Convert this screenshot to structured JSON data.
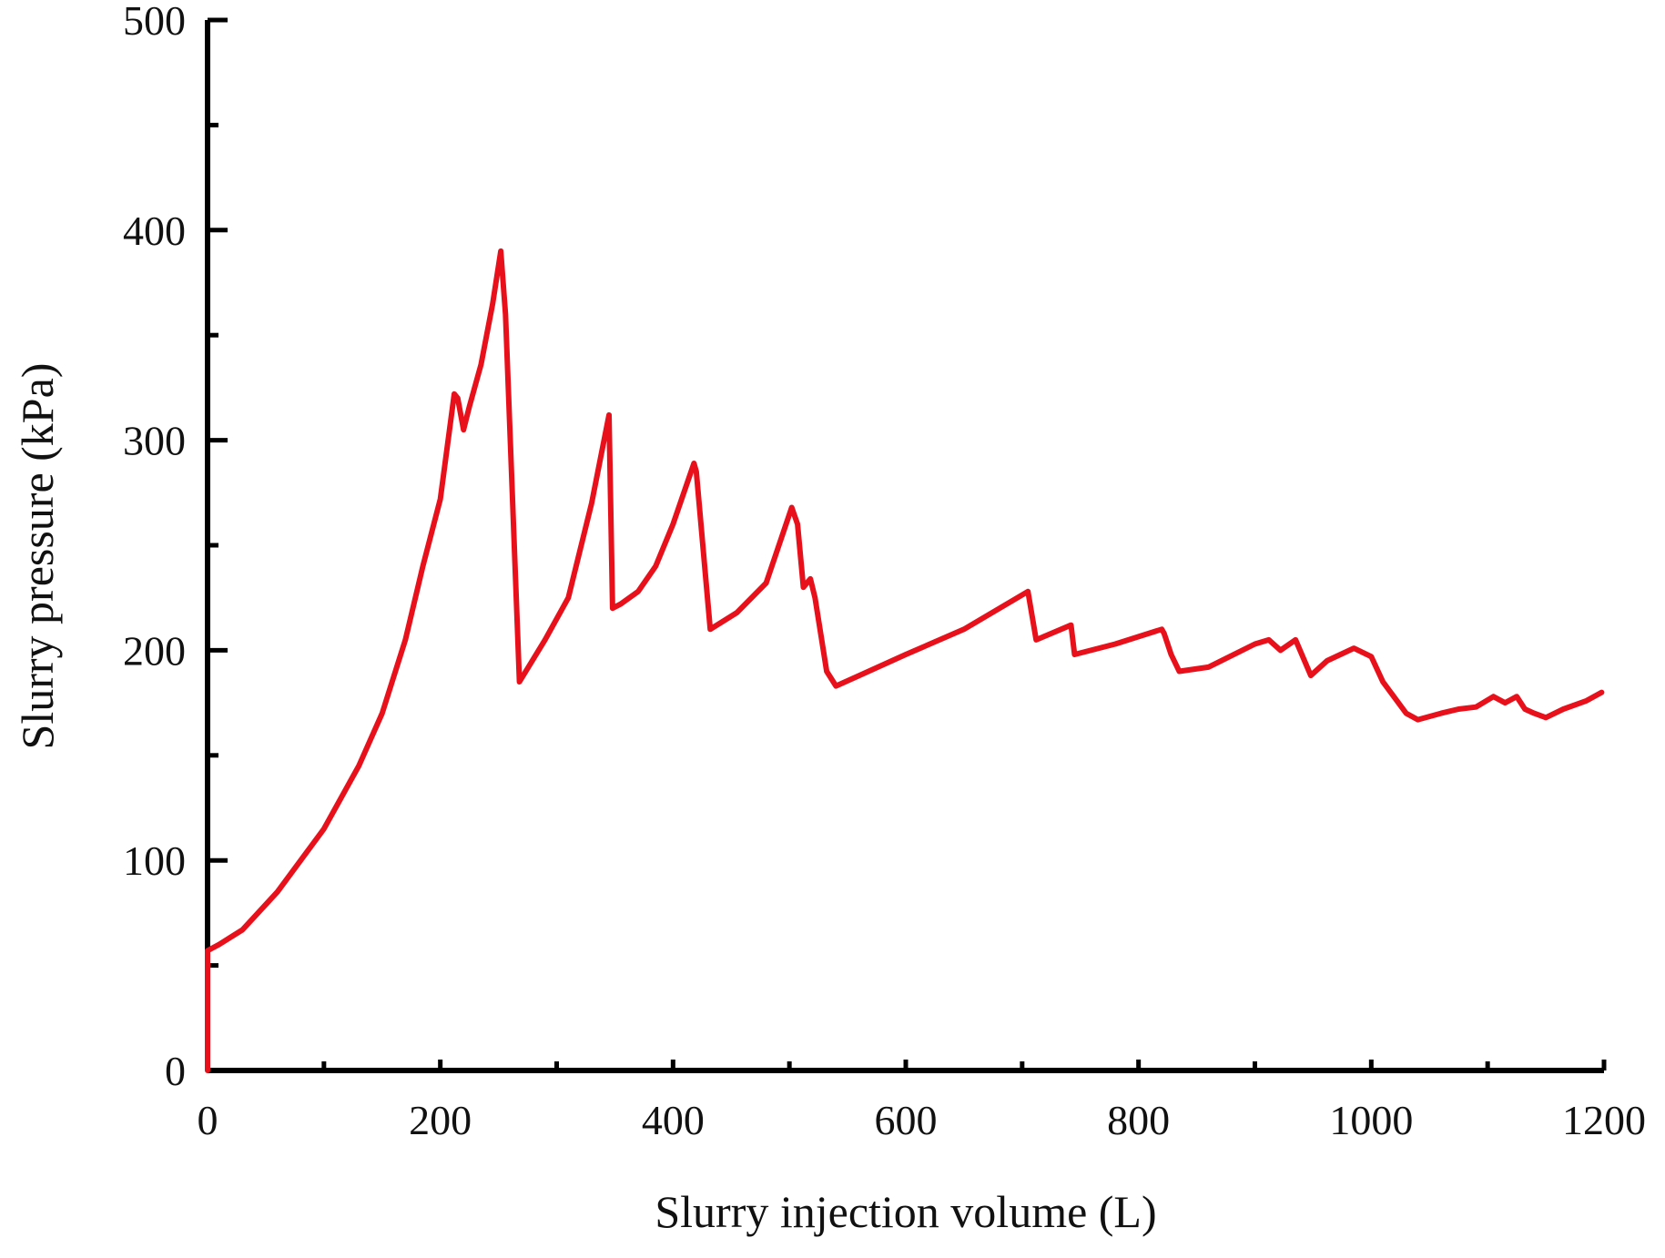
{
  "chart_data": {
    "type": "line",
    "title": "",
    "xlabel": "Slurry injection volume (L)",
    "ylabel": "Slurry pressure (kPa)",
    "xlim": [
      0,
      1200
    ],
    "ylim": [
      0,
      500
    ],
    "xticks": [
      0,
      200,
      400,
      600,
      800,
      1000,
      1200
    ],
    "yticks": [
      0,
      100,
      200,
      300,
      400,
      500
    ],
    "grid": false,
    "legend": "none",
    "series": [
      {
        "name": "Slurry pressure",
        "color": "#e8101a",
        "x": [
          0,
          0,
          10,
          30,
          60,
          100,
          130,
          150,
          170,
          185,
          200,
          212,
          215,
          220,
          225,
          235,
          245,
          252,
          256,
          268,
          290,
          310,
          330,
          345,
          348,
          355,
          370,
          385,
          400,
          418,
          420,
          432,
          455,
          480,
          502,
          507,
          512,
          518,
          522,
          532,
          540,
          560,
          600,
          650,
          705,
          712,
          742,
          745,
          780,
          820,
          822,
          828,
          835,
          860,
          900,
          912,
          922,
          935,
          948,
          962,
          985,
          1000,
          1010,
          1030,
          1040,
          1060,
          1075,
          1090,
          1105,
          1115,
          1125,
          1132,
          1140,
          1150,
          1165,
          1185,
          1198
        ],
        "y": [
          0,
          57,
          60,
          67,
          85,
          115,
          145,
          170,
          205,
          240,
          272,
          322,
          320,
          305,
          316,
          336,
          365,
          390,
          360,
          185,
          205,
          225,
          270,
          312,
          220,
          222,
          228,
          240,
          260,
          289,
          285,
          210,
          218,
          232,
          268,
          260,
          230,
          234,
          225,
          190,
          183,
          188,
          198,
          210,
          228,
          205,
          212,
          198,
          203,
          210,
          208,
          198,
          190,
          192,
          203,
          205,
          200,
          205,
          188,
          195,
          201,
          197,
          185,
          170,
          167,
          170,
          172,
          173,
          178,
          175,
          178,
          172,
          170,
          168,
          172,
          176,
          180
        ]
      }
    ]
  }
}
